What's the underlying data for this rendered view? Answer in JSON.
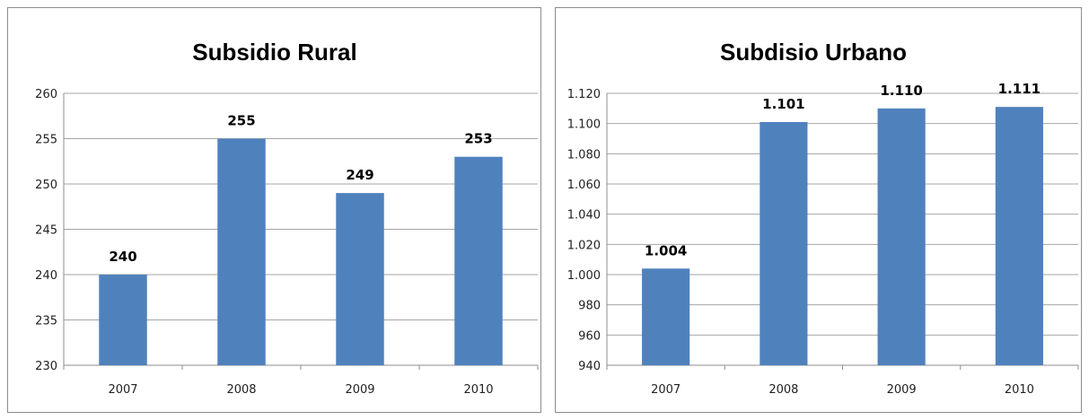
{
  "chart_data": [
    {
      "type": "bar",
      "title": "Subsidio Rural",
      "categories": [
        "2007",
        "2008",
        "2009",
        "2010"
      ],
      "values": [
        240,
        255,
        249,
        253
      ],
      "data_labels": [
        "240",
        "255",
        "249",
        "253"
      ],
      "ylim": [
        230,
        260
      ],
      "yticks": [
        230,
        235,
        240,
        245,
        250,
        255,
        260
      ],
      "ytick_labels": [
        "230",
        "235",
        "240",
        "245",
        "250",
        "255",
        "260"
      ],
      "grid": true,
      "bar_color": "#4f81bd"
    },
    {
      "type": "bar",
      "title": "Subdisio Urbano",
      "categories": [
        "2007",
        "2008",
        "2009",
        "2010"
      ],
      "values": [
        1004,
        1101,
        1110,
        1111
      ],
      "data_labels": [
        "1.004",
        "1.101",
        "1.110",
        "1.111"
      ],
      "ylim": [
        940,
        1120
      ],
      "yticks": [
        940,
        960,
        980,
        1000,
        1020,
        1040,
        1060,
        1080,
        1100,
        1120
      ],
      "ytick_labels": [
        "940",
        "960",
        "980",
        "1.000",
        "1.020",
        "1.040",
        "1.060",
        "1.080",
        "1.100",
        "1.120"
      ],
      "grid": true,
      "bar_color": "#4f81bd"
    }
  ]
}
